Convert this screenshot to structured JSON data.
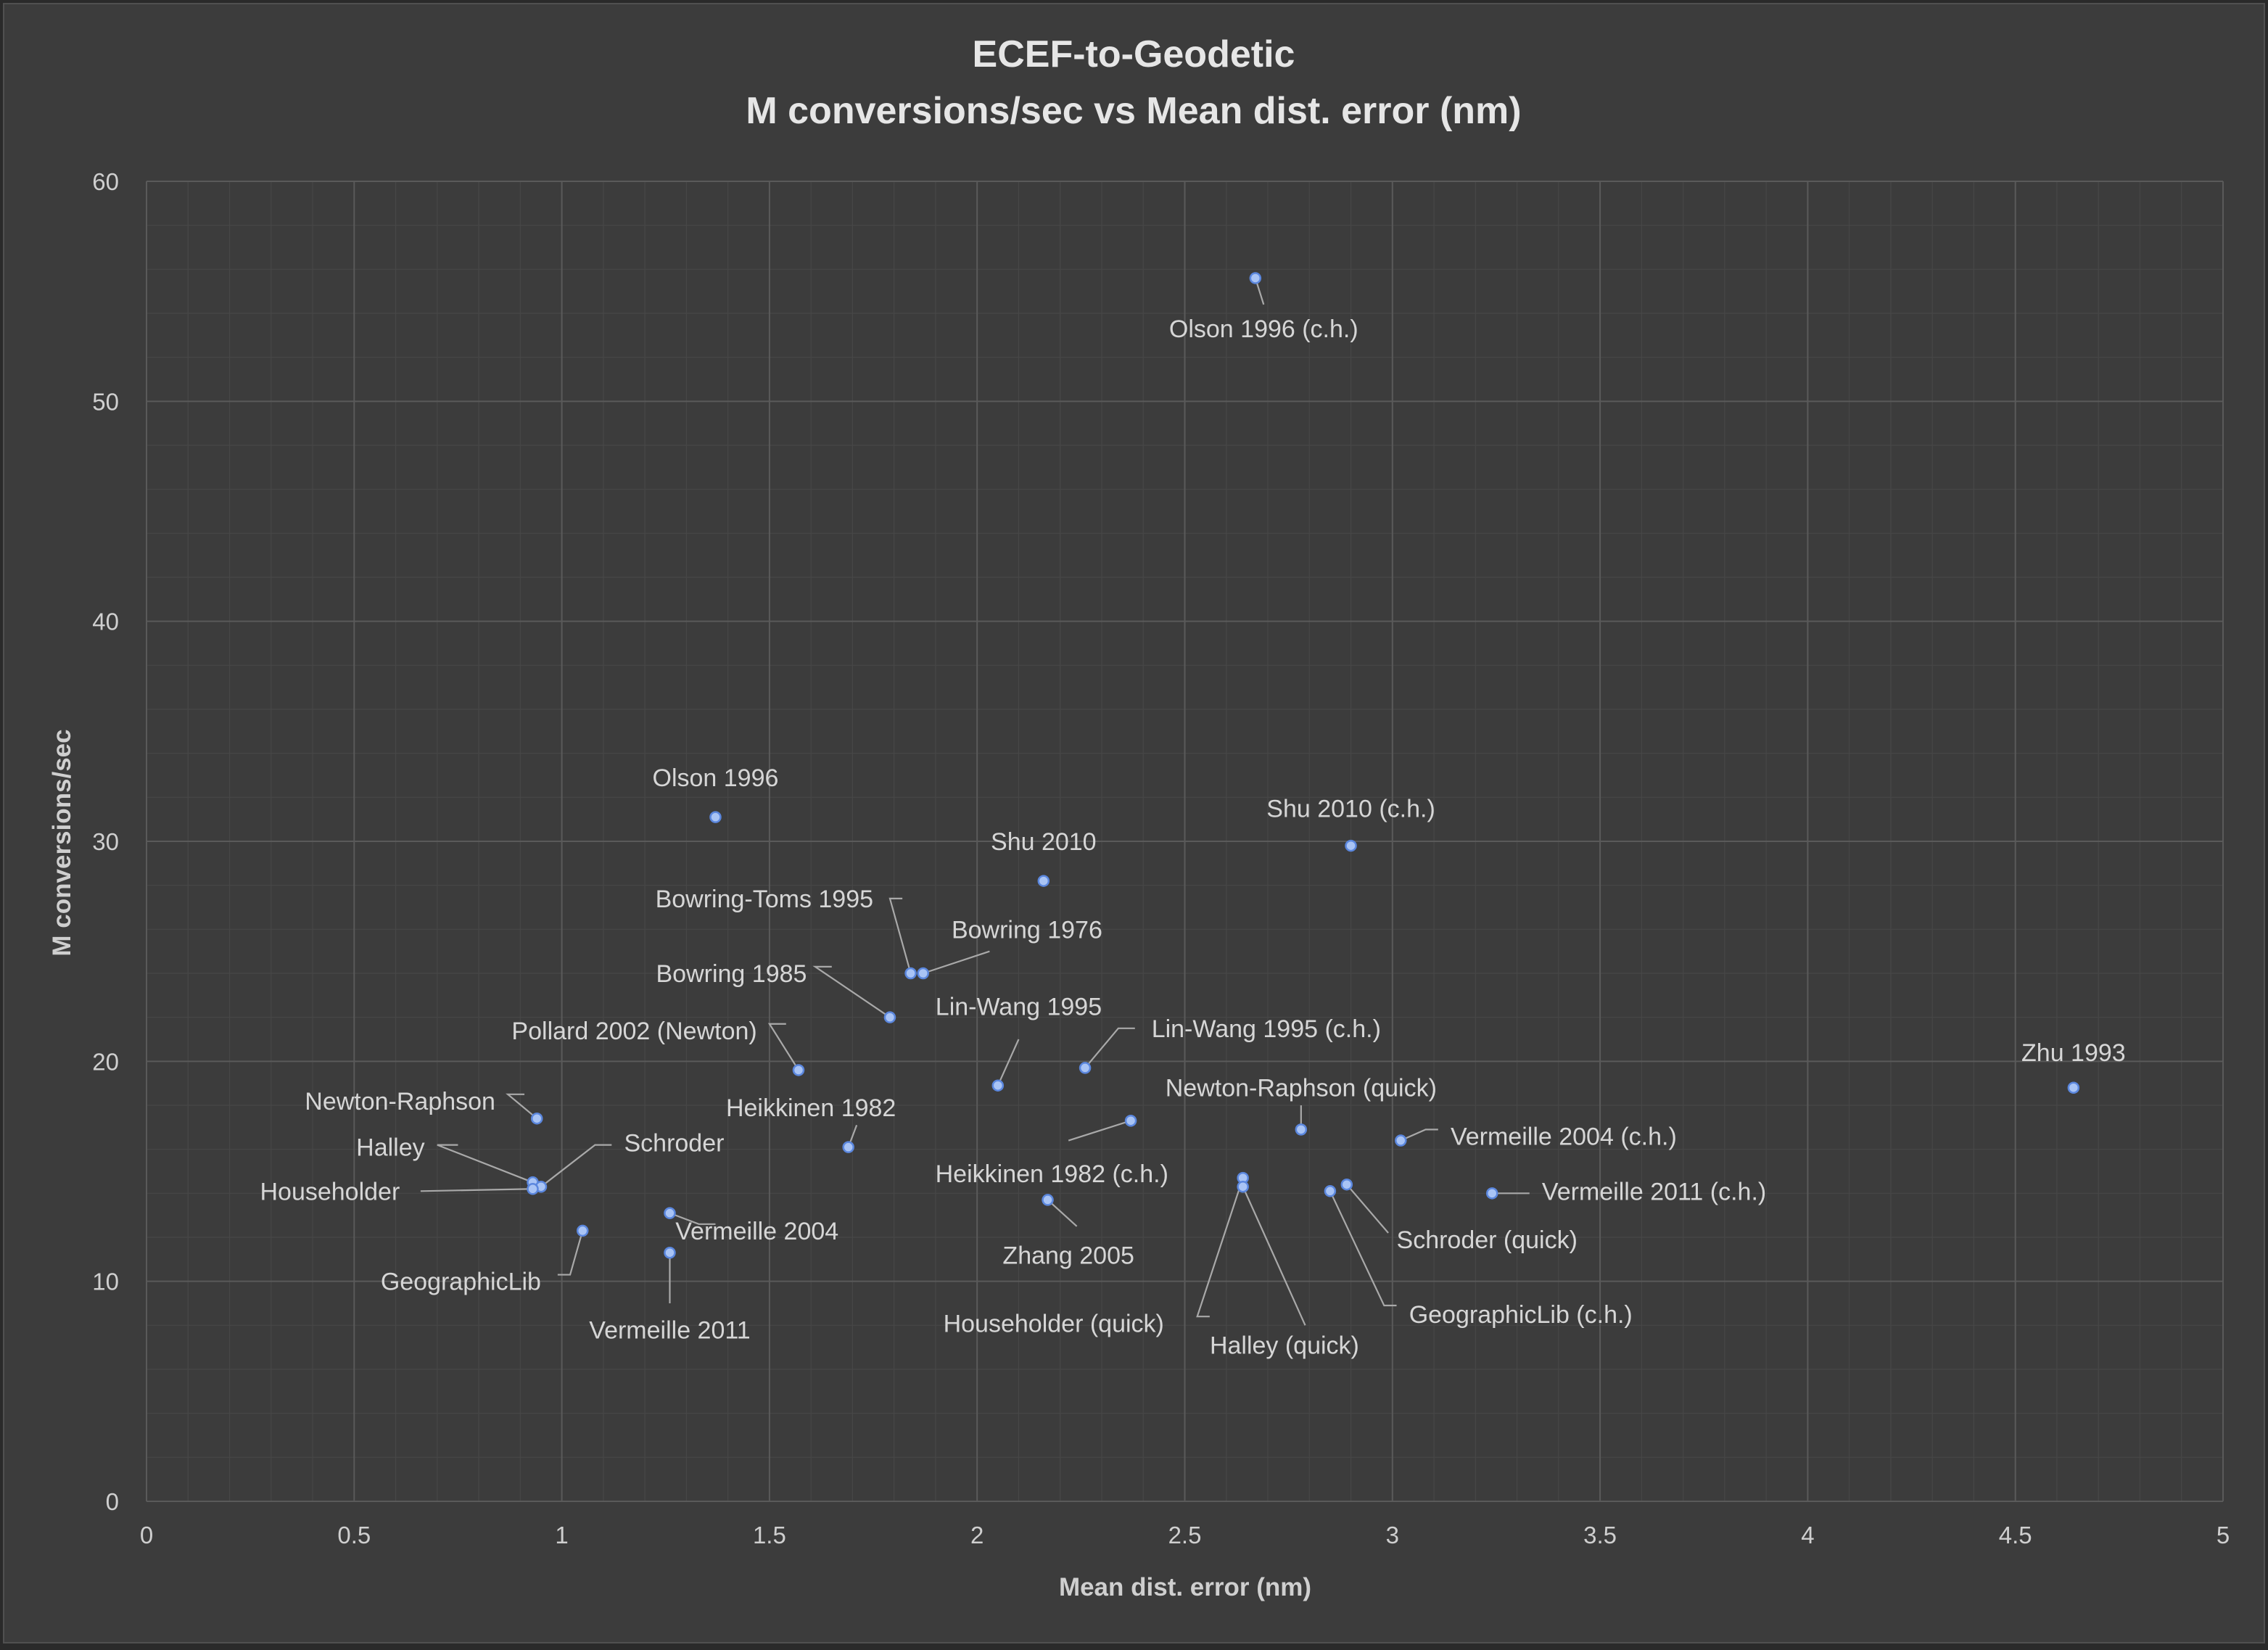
{
  "chart_data": {
    "type": "scatter",
    "title": "ECEF-to-Geodetic",
    "subtitle": "M conversions/sec vs Mean dist. error (nm)",
    "xlabel": "Mean dist. error (nm)",
    "ylabel": "M conversions/sec",
    "xlim": [
      0,
      5
    ],
    "ylim": [
      0,
      60
    ],
    "x_ticks": [
      "0",
      "0.5",
      "1",
      "1.5",
      "2",
      "2.5",
      "3",
      "3.5",
      "4",
      "4.5",
      "5"
    ],
    "y_ticks": [
      "0",
      "10",
      "20",
      "30",
      "40",
      "50",
      "60"
    ],
    "grid": true,
    "legend": "none",
    "colors": {
      "background": "#3c3c3c",
      "point": "#a9c4f5",
      "point_stroke": "#5b87de",
      "text": "#d6d6d6"
    },
    "points": [
      {
        "label": "Olson 1996 (c.h.)",
        "x": 2.67,
        "y": 55.6,
        "lx": 2.69,
        "ly": 53.3,
        "anchor": "middle",
        "leader": [
          [
            2.69,
            54.4
          ]
        ]
      },
      {
        "label": "Olson 1996",
        "x": 1.37,
        "y": 31.1,
        "lx": 1.37,
        "ly": 32.9,
        "anchor": "middle"
      },
      {
        "label": "Shu 2010 (c.h.)",
        "x": 2.9,
        "y": 29.8,
        "lx": 2.9,
        "ly": 31.5,
        "anchor": "middle"
      },
      {
        "label": "Shu 2010",
        "x": 2.16,
        "y": 28.2,
        "lx": 2.16,
        "ly": 30.0,
        "anchor": "middle"
      },
      {
        "label": "Bowring-Toms 1995",
        "x": 1.84,
        "y": 24.0,
        "lx": 1.75,
        "ly": 27.4,
        "anchor": "end",
        "leader": [
          [
            1.79,
            27.4
          ],
          [
            1.82,
            27.4
          ]
        ]
      },
      {
        "label": "Bowring 1976",
        "x": 1.87,
        "y": 24.0,
        "lx": 2.12,
        "ly": 26.0,
        "anchor": "middle",
        "leader": [
          [
            2.03,
            25.0
          ]
        ]
      },
      {
        "label": "Bowring 1985",
        "x": 1.79,
        "y": 22.0,
        "lx": 1.59,
        "ly": 24.0,
        "anchor": "end",
        "leader": [
          [
            1.61,
            24.3
          ],
          [
            1.65,
            24.3
          ]
        ]
      },
      {
        "label": "Lin-Wang 1995",
        "x": 2.05,
        "y": 18.9,
        "lx": 2.1,
        "ly": 22.5,
        "anchor": "middle",
        "leader": [
          [
            2.1,
            21.0
          ]
        ]
      },
      {
        "label": "Lin-Wang 1995 (c.h.)",
        "x": 2.26,
        "y": 19.7,
        "lx": 2.42,
        "ly": 21.5,
        "anchor": "start",
        "leader": [
          [
            2.34,
            21.5
          ],
          [
            2.38,
            21.5
          ]
        ]
      },
      {
        "label": "Pollard 2002 (Newton)",
        "x": 1.57,
        "y": 19.6,
        "lx": 1.47,
        "ly": 21.4,
        "anchor": "end",
        "leader": [
          [
            1.5,
            21.7
          ],
          [
            1.54,
            21.7
          ]
        ]
      },
      {
        "label": "Zhu 1993",
        "x": 4.64,
        "y": 18.8,
        "lx": 4.64,
        "ly": 20.4,
        "anchor": "middle"
      },
      {
        "label": "Newton-Raphson",
        "x": 0.94,
        "y": 17.4,
        "lx": 0.84,
        "ly": 18.2,
        "anchor": "end",
        "leader": [
          [
            0.87,
            18.5
          ],
          [
            0.91,
            18.5
          ]
        ]
      },
      {
        "label": "Newton-Raphson (quick)",
        "x": 2.78,
        "y": 16.9,
        "lx": 2.78,
        "ly": 18.8,
        "anchor": "middle",
        "leader": [
          [
            2.78,
            18.0
          ]
        ]
      },
      {
        "label": "Heikkinen 1982",
        "x": 1.69,
        "y": 16.1,
        "lx": 1.6,
        "ly": 17.9,
        "anchor": "middle",
        "leader": [
          [
            1.71,
            17.1
          ]
        ]
      },
      {
        "label": "Heikkinen 1982 (c.h.)",
        "x": 2.37,
        "y": 17.3,
        "lx": 2.18,
        "ly": 14.9,
        "anchor": "middle",
        "leader": [
          [
            2.22,
            16.4
          ]
        ]
      },
      {
        "label": "Vermeille 2004 (c.h.)",
        "x": 3.02,
        "y": 16.4,
        "lx": 3.14,
        "ly": 16.6,
        "anchor": "start",
        "leader": [
          [
            3.08,
            16.9
          ],
          [
            3.11,
            16.9
          ]
        ]
      },
      {
        "label": "Halley",
        "x": 0.93,
        "y": 14.5,
        "lx": 0.67,
        "ly": 16.1,
        "anchor": "end",
        "leader": [
          [
            0.7,
            16.2
          ],
          [
            0.75,
            16.2
          ]
        ]
      },
      {
        "label": "Schroder",
        "x": 0.95,
        "y": 14.3,
        "lx": 1.15,
        "ly": 16.3,
        "anchor": "start",
        "leader": [
          [
            1.08,
            16.2
          ],
          [
            1.12,
            16.2
          ]
        ]
      },
      {
        "label": "Householder",
        "x": 0.93,
        "y": 14.2,
        "lx": 0.61,
        "ly": 14.1,
        "anchor": "end",
        "leader": [
          [
            0.66,
            14.1
          ]
        ]
      },
      {
        "label": "Vermeille 2011 (c.h.)",
        "x": 3.24,
        "y": 14.0,
        "lx": 3.36,
        "ly": 14.1,
        "anchor": "start",
        "leader": [
          [
            3.33,
            14.0
          ]
        ]
      },
      {
        "label": "Zhang 2005",
        "x": 2.17,
        "y": 13.7,
        "lx": 2.22,
        "ly": 11.2,
        "anchor": "middle",
        "leader": [
          [
            2.24,
            12.5
          ]
        ]
      },
      {
        "label": "Vermeille 2004",
        "x": 1.26,
        "y": 13.1,
        "lx": 1.47,
        "ly": 12.3,
        "anchor": "middle",
        "leader": [
          [
            1.33,
            12.6
          ],
          [
            1.37,
            12.6
          ]
        ]
      },
      {
        "label": "Householder (quick)",
        "x": 2.64,
        "y": 14.7,
        "lx": 2.45,
        "ly": 8.1,
        "anchor": "end",
        "leader": [
          [
            2.53,
            8.4
          ],
          [
            2.56,
            8.4
          ]
        ]
      },
      {
        "label": "Halley (quick)",
        "x": 2.64,
        "y": 14.3,
        "lx": 2.74,
        "ly": 7.1,
        "anchor": "middle",
        "leader": [
          [
            2.79,
            8.0
          ]
        ]
      },
      {
        "label": "Schroder (quick)",
        "x": 2.89,
        "y": 14.4,
        "lx": 3.01,
        "ly": 11.9,
        "anchor": "start",
        "leader": [
          [
            2.99,
            12.2
          ]
        ]
      },
      {
        "label": "GeographicLib (c.h.)",
        "x": 2.85,
        "y": 14.1,
        "lx": 3.04,
        "ly": 8.5,
        "anchor": "start",
        "leader": [
          [
            2.98,
            8.9
          ],
          [
            3.01,
            8.9
          ]
        ]
      },
      {
        "label": "GeographicLib",
        "x": 1.05,
        "y": 12.3,
        "lx": 0.95,
        "ly": 10.0,
        "anchor": "end",
        "leader": [
          [
            1.02,
            10.3
          ],
          [
            0.99,
            10.3
          ]
        ]
      },
      {
        "label": "Vermeille 2011",
        "x": 1.26,
        "y": 11.3,
        "lx": 1.26,
        "ly": 7.8,
        "anchor": "middle",
        "leader": [
          [
            1.26,
            9.0
          ]
        ]
      }
    ]
  }
}
